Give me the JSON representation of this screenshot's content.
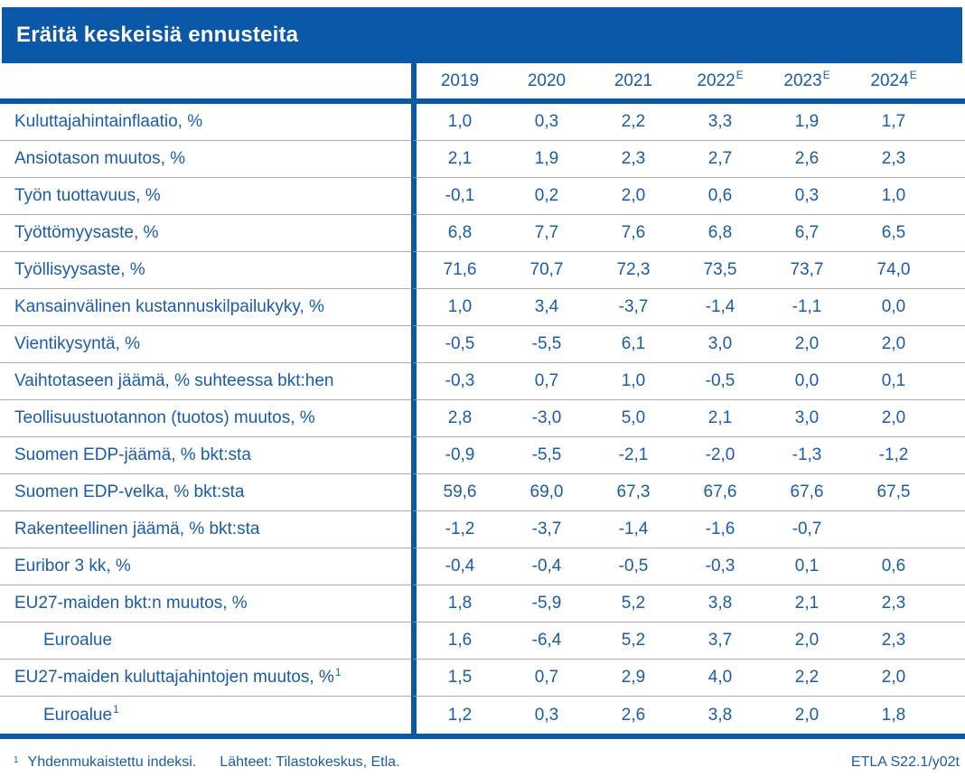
{
  "title": "Eräitä keskeisiä ennusteita",
  "colors": {
    "brand_blue": "#0B57A8",
    "text_blue": "#1A5CA9",
    "row_line_gray": "#ABABAB",
    "title_text": "#FFFFFF"
  },
  "table": {
    "columns": [
      {
        "label": "2019",
        "sup": ""
      },
      {
        "label": "2020",
        "sup": ""
      },
      {
        "label": "2021",
        "sup": ""
      },
      {
        "label": "2022",
        "sup": "E"
      },
      {
        "label": "2023",
        "sup": "E"
      },
      {
        "label": "2024",
        "sup": "E"
      }
    ],
    "rows": [
      {
        "label": "Kuluttajahintainflaatio, %",
        "sup": "",
        "indent": false,
        "values": [
          "1,0",
          "0,3",
          "2,2",
          "3,3",
          "1,9",
          "1,7"
        ]
      },
      {
        "label": "Ansiotason muutos, %",
        "sup": "",
        "indent": false,
        "values": [
          "2,1",
          "1,9",
          "2,3",
          "2,7",
          "2,6",
          "2,3"
        ]
      },
      {
        "label": "Työn tuottavuus, %",
        "sup": "",
        "indent": false,
        "values": [
          "-0,1",
          "0,2",
          "2,0",
          "0,6",
          "0,3",
          "1,0"
        ]
      },
      {
        "label": "Työttömyysaste, %",
        "sup": "",
        "indent": false,
        "values": [
          "6,8",
          "7,7",
          "7,6",
          "6,8",
          "6,7",
          "6,5"
        ]
      },
      {
        "label": "Työllisyysaste, %",
        "sup": "",
        "indent": false,
        "values": [
          "71,6",
          "70,7",
          "72,3",
          "73,5",
          "73,7",
          "74,0"
        ]
      },
      {
        "label": "Kansainvälinen kustannuskilpailukyky, %",
        "sup": "",
        "indent": false,
        "values": [
          "1,0",
          "3,4",
          "-3,7",
          "-1,4",
          "-1,1",
          "0,0"
        ]
      },
      {
        "label": "Vientikysyntä, %",
        "sup": "",
        "indent": false,
        "values": [
          "-0,5",
          "-5,5",
          "6,1",
          "3,0",
          "2,0",
          "2,0"
        ]
      },
      {
        "label": "Vaihtotaseen jäämä, % suhteessa bkt:hen",
        "sup": "",
        "indent": false,
        "values": [
          "-0,3",
          "0,7",
          "1,0",
          "-0,5",
          "0,0",
          "0,1"
        ]
      },
      {
        "label": "Teollisuustuotannon (tuotos) muutos, %",
        "sup": "",
        "indent": false,
        "values": [
          "2,8",
          "-3,0",
          "5,0",
          "2,1",
          "3,0",
          "2,0"
        ]
      },
      {
        "label": "Suomen EDP-jäämä, % bkt:sta",
        "sup": "",
        "indent": false,
        "values": [
          "-0,9",
          "-5,5",
          "-2,1",
          "-2,0",
          "-1,3",
          "-1,2"
        ]
      },
      {
        "label": "Suomen EDP-velka, % bkt:sta",
        "sup": "",
        "indent": false,
        "values": [
          "59,6",
          "69,0",
          "67,3",
          "67,6",
          "67,6",
          "67,5"
        ]
      },
      {
        "label": "Rakenteellinen jäämä, % bkt:sta",
        "sup": "",
        "indent": false,
        "values": [
          "-1,2",
          "-3,7",
          "-1,4",
          "-1,6",
          "-0,7",
          ""
        ]
      },
      {
        "label": "Euribor 3 kk, %",
        "sup": "",
        "indent": false,
        "values": [
          "-0,4",
          "-0,4",
          "-0,5",
          "-0,3",
          "0,1",
          "0,6"
        ]
      },
      {
        "label": "EU27-maiden bkt:n muutos, %",
        "sup": "",
        "indent": false,
        "values": [
          "1,8",
          "-5,9",
          "5,2",
          "3,8",
          "2,1",
          "2,3"
        ]
      },
      {
        "label": "Euroalue",
        "sup": "",
        "indent": true,
        "values": [
          "1,6",
          "-6,4",
          "5,2",
          "3,7",
          "2,0",
          "2,3"
        ]
      },
      {
        "label": "EU27-maiden kuluttajahintojen muutos, %",
        "sup": "1",
        "indent": false,
        "values": [
          "1,5",
          "0,7",
          "2,9",
          "4,0",
          "2,2",
          "2,0"
        ]
      },
      {
        "label": "Euroalue",
        "sup": "1",
        "indent": true,
        "values": [
          "1,2",
          "0,3",
          "2,6",
          "3,8",
          "2,0",
          "1,8"
        ]
      }
    ]
  },
  "footer": {
    "footnote_marker": "1",
    "footnote_text": "Yhdenmukaistettu indeksi.",
    "sources": "Lähteet: Tilastokeskus, Etla.",
    "code": "ETLA S22.1/y02t"
  }
}
